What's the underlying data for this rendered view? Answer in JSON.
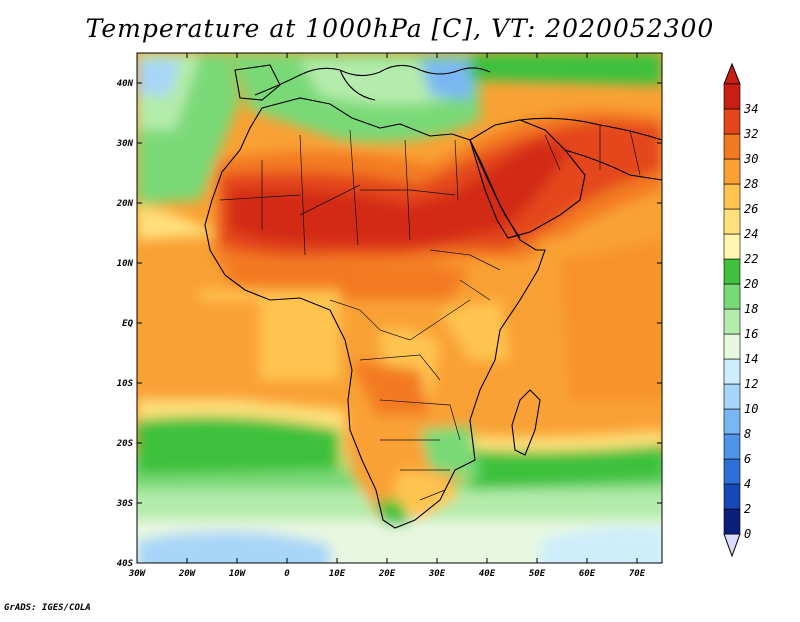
{
  "title": "Temperature at 1000hPa [C], VT: 2020052300",
  "footer": "GrADS: IGES/COLA",
  "map": {
    "lon_labels": [
      "30W",
      "20W",
      "10W",
      "0",
      "10E",
      "20E",
      "30E",
      "40E",
      "50E",
      "60E",
      "70E"
    ],
    "lat_labels": [
      "40N",
      "30N",
      "20N",
      "10N",
      "EQ",
      "10S",
      "20S",
      "30S",
      "40S"
    ],
    "lon_range": [
      -30,
      75
    ],
    "lat_range": [
      -40,
      45
    ],
    "variable": "temperature",
    "units": "C"
  },
  "colorbar": {
    "labels": [
      "0",
      "2",
      "4",
      "6",
      "8",
      "10",
      "12",
      "14",
      "16",
      "18",
      "20",
      "22",
      "24",
      "26",
      "28",
      "30",
      "32",
      "34"
    ],
    "colors": [
      "#0b1e7a",
      "#1848b8",
      "#2f6fd8",
      "#4f93ea",
      "#7ab7f2",
      "#a8d6f8",
      "#cfeefb",
      "#e8f8e0",
      "#b4ecab",
      "#7ad977",
      "#3ec13c",
      "#fff7b0",
      "#ffe07a",
      "#ffc450",
      "#f9a134",
      "#f37a22",
      "#e4461c",
      "#c81e16"
    ],
    "under_color": "#dcdcfa",
    "over_color": "#c81e16"
  }
}
